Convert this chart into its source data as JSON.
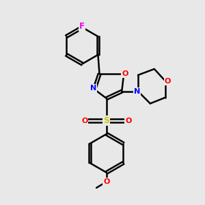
{
  "background_color": "#e8e8e8",
  "bond_color": "#000000",
  "atom_colors": {
    "F": "#ee00ee",
    "O": "#ff0000",
    "N": "#0000ff",
    "S": "#cccc00",
    "C": "#000000"
  },
  "bond_width": 1.8,
  "xlim": [
    0,
    10
  ],
  "ylim": [
    0,
    10
  ]
}
